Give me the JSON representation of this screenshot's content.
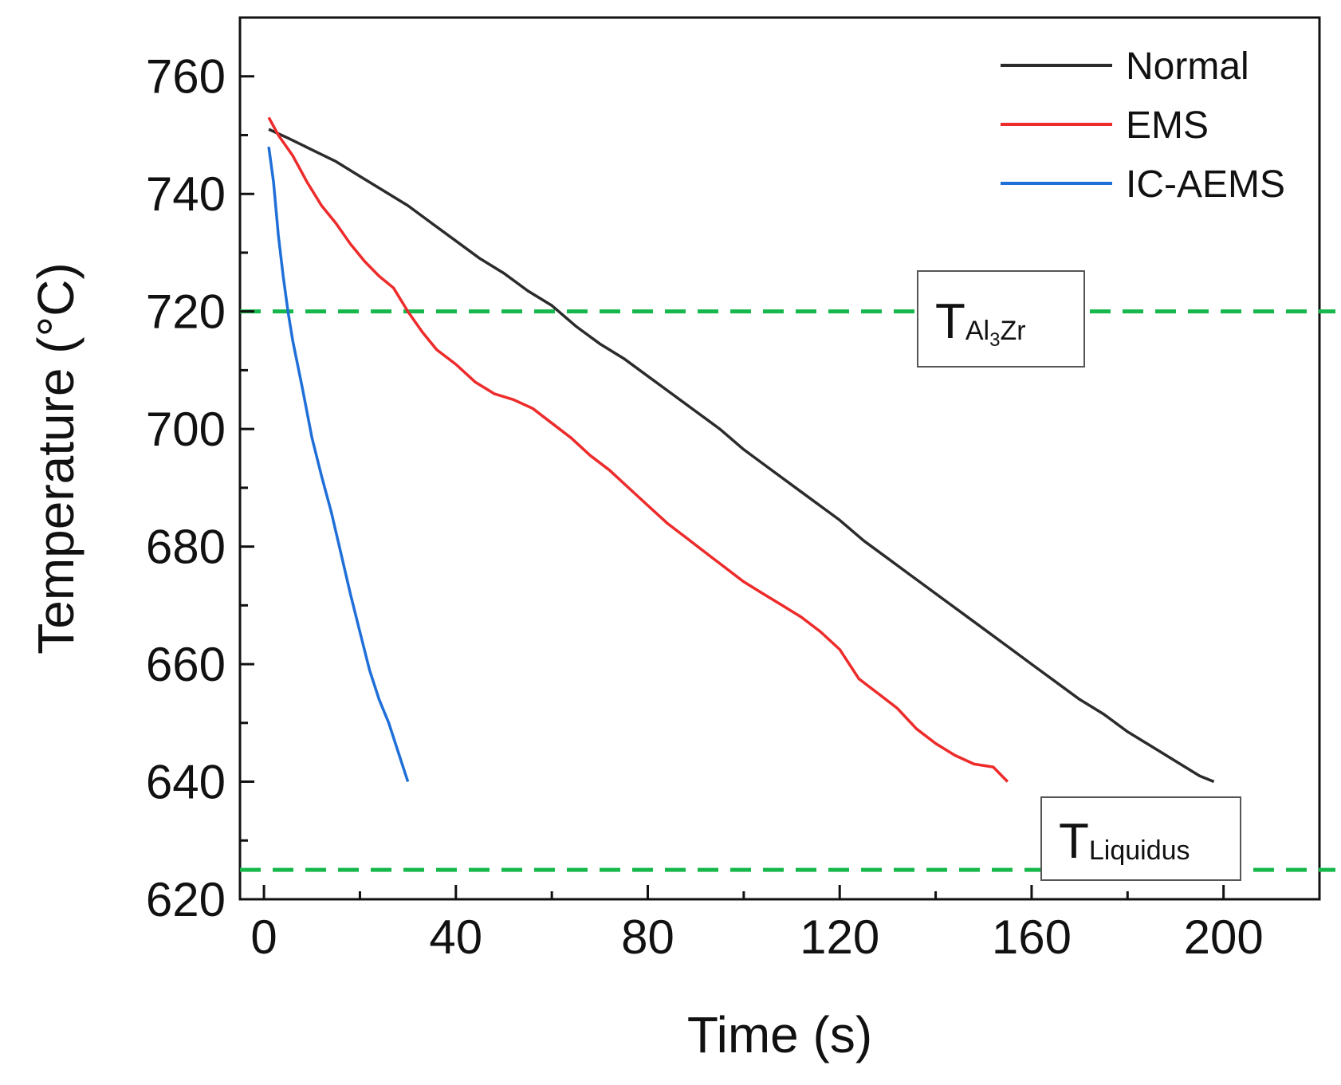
{
  "chart_data": {
    "type": "line",
    "title": "",
    "xlabel": "Time (s)",
    "ylabel": "Temperature (°C)",
    "xlim": [
      -5,
      220
    ],
    "ylim": [
      620,
      770
    ],
    "xticks": [
      0,
      40,
      80,
      120,
      160,
      200
    ],
    "yticks": [
      620,
      640,
      660,
      680,
      700,
      720,
      740,
      760
    ],
    "x_minor_step": 20,
    "y_minor_step": 10,
    "grid": false,
    "legend_position": "top-right",
    "series": [
      {
        "name": "Normal",
        "color": "#2b2b2b",
        "points": [
          [
            1,
            751
          ],
          [
            5,
            749.5
          ],
          [
            10,
            747.5
          ],
          [
            15,
            745.5
          ],
          [
            20,
            743
          ],
          [
            25,
            740.5
          ],
          [
            30,
            738
          ],
          [
            35,
            735
          ],
          [
            40,
            732
          ],
          [
            45,
            729
          ],
          [
            50,
            726.5
          ],
          [
            55,
            723.5
          ],
          [
            60,
            721
          ],
          [
            65,
            717.5
          ],
          [
            70,
            714.5
          ],
          [
            75,
            712
          ],
          [
            80,
            709
          ],
          [
            85,
            706
          ],
          [
            90,
            703
          ],
          [
            95,
            700
          ],
          [
            100,
            696.5
          ],
          [
            105,
            693.5
          ],
          [
            110,
            690.5
          ],
          [
            115,
            687.5
          ],
          [
            120,
            684.5
          ],
          [
            125,
            681
          ],
          [
            130,
            678
          ],
          [
            135,
            675
          ],
          [
            140,
            672
          ],
          [
            145,
            669
          ],
          [
            150,
            666
          ],
          [
            155,
            663
          ],
          [
            160,
            660
          ],
          [
            165,
            657
          ],
          [
            170,
            654
          ],
          [
            175,
            651.5
          ],
          [
            180,
            648.5
          ],
          [
            185,
            646
          ],
          [
            190,
            643.5
          ],
          [
            195,
            641
          ],
          [
            198,
            640
          ]
        ]
      },
      {
        "name": "EMS",
        "color": "#ee2b2b",
        "points": [
          [
            1,
            753
          ],
          [
            3,
            750
          ],
          [
            6,
            746.5
          ],
          [
            9,
            742
          ],
          [
            12,
            738
          ],
          [
            15,
            735
          ],
          [
            18,
            731.5
          ],
          [
            21,
            728.5
          ],
          [
            24,
            726
          ],
          [
            27,
            724
          ],
          [
            30,
            720
          ],
          [
            33,
            716.5
          ],
          [
            36,
            713.5
          ],
          [
            40,
            711
          ],
          [
            44,
            708
          ],
          [
            48,
            706
          ],
          [
            52,
            705
          ],
          [
            56,
            703.5
          ],
          [
            60,
            701
          ],
          [
            64,
            698.5
          ],
          [
            68,
            695.5
          ],
          [
            72,
            693
          ],
          [
            76,
            690
          ],
          [
            80,
            687
          ],
          [
            84,
            684
          ],
          [
            88,
            681.5
          ],
          [
            92,
            679
          ],
          [
            96,
            676.5
          ],
          [
            100,
            674
          ],
          [
            104,
            672
          ],
          [
            108,
            670
          ],
          [
            112,
            668
          ],
          [
            116,
            665.5
          ],
          [
            120,
            662.5
          ],
          [
            124,
            657.5
          ],
          [
            128,
            655
          ],
          [
            132,
            652.5
          ],
          [
            136,
            649
          ],
          [
            140,
            646.5
          ],
          [
            144,
            644.5
          ],
          [
            148,
            643
          ],
          [
            152,
            642.5
          ],
          [
            155,
            640
          ]
        ]
      },
      {
        "name": "IC-AEMS",
        "color": "#1f6fd8",
        "points": [
          [
            1,
            748
          ],
          [
            2,
            742
          ],
          [
            3,
            733
          ],
          [
            4,
            726
          ],
          [
            5,
            720
          ],
          [
            6,
            715
          ],
          [
            8,
            707
          ],
          [
            10,
            698.5
          ],
          [
            12,
            692
          ],
          [
            14,
            686
          ],
          [
            16,
            679
          ],
          [
            18,
            672
          ],
          [
            20,
            665.5
          ],
          [
            22,
            659
          ],
          [
            24,
            654
          ],
          [
            26,
            650
          ],
          [
            28,
            645
          ],
          [
            30,
            640
          ]
        ]
      }
    ],
    "reference_lines": [
      {
        "name": "TAl3Zr",
        "y": 720,
        "color": "#16b84c",
        "label_main": "T",
        "label_sub_parts": [
          "Al",
          "3",
          "Zr"
        ]
      },
      {
        "name": "TLiquidus",
        "y": 625,
        "color": "#16b84c",
        "label_main": "T",
        "label_sub_parts": [
          "Liquidus"
        ]
      }
    ]
  }
}
